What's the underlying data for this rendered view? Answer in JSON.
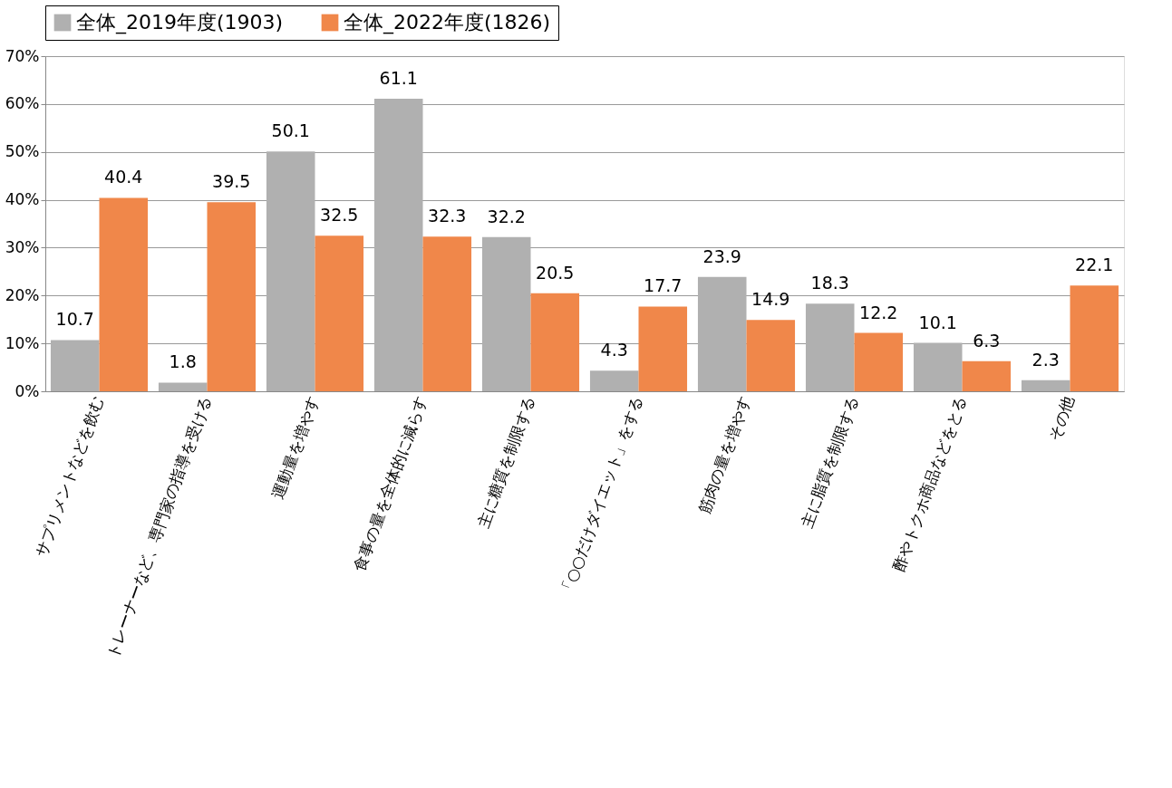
{
  "chart_data": {
    "type": "bar",
    "categories": [
      "サプリメントなどを飲む",
      "トレーナーなど、専門家の指導を受ける",
      "運動量を増やす",
      "食事の量を全体的に減らす",
      "主に糖質を制限する",
      "「○○だけダイエット」をする",
      "筋肉の量を増やす",
      "主に脂質を制限する",
      "酢やトクホ商品などをとる",
      "その他"
    ],
    "series": [
      {
        "name": "全体_2019年度(1903)",
        "color": "#b0b0b0",
        "values": [
          10.7,
          1.8,
          50.1,
          61.1,
          32.2,
          4.3,
          23.9,
          18.3,
          10.1,
          2.3
        ]
      },
      {
        "name": "全体_2022年度(1826)",
        "color": "#f0874a",
        "values": [
          40.4,
          39.5,
          32.5,
          32.3,
          20.5,
          17.7,
          14.9,
          12.2,
          6.3,
          22.1
        ]
      }
    ],
    "ylim": [
      0,
      70
    ],
    "yticks": [
      {
        "value": 0,
        "label": "0%"
      },
      {
        "value": 10,
        "label": "10%"
      },
      {
        "value": 20,
        "label": "20%"
      },
      {
        "value": 30,
        "label": "30%"
      },
      {
        "value": 40,
        "label": "40%"
      },
      {
        "value": 50,
        "label": "50%"
      },
      {
        "value": 60,
        "label": "60%"
      },
      {
        "value": 70,
        "label": "70%"
      }
    ],
    "grid": "y",
    "legend": "top",
    "data_labels": true
  }
}
